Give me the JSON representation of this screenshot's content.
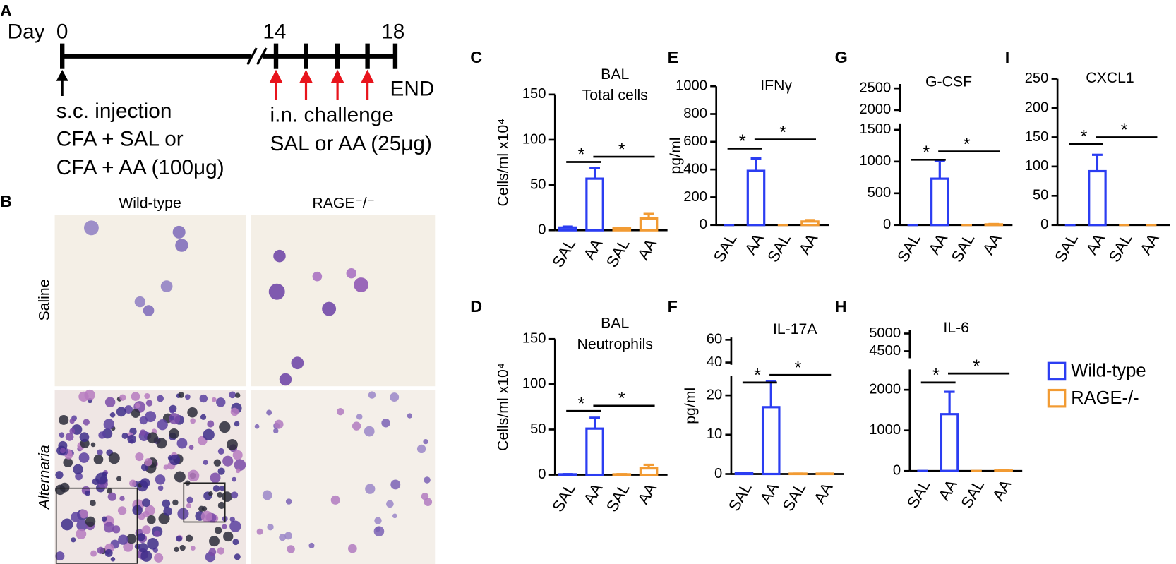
{
  "timeline": {
    "panel": "A",
    "day_label": "Day",
    "days": [
      "0",
      "14",
      "18"
    ],
    "end_label": "END",
    "injection": [
      "s.c. injection",
      "CFA + SAL or",
      "CFA + AA (100μg)"
    ],
    "challenge": [
      "i.n. challenge",
      "SAL or AA (25μg)"
    ]
  },
  "micrographs": {
    "panel": "B",
    "columns": [
      "Wild-type",
      "RAGE⁻/⁻"
    ],
    "rows": [
      "Saline",
      "Alternaria"
    ]
  },
  "legend": {
    "entries": [
      {
        "name": "Wild-type",
        "color": "#2b3df2"
      },
      {
        "name": "RAGE-/-",
        "color": "#f29b33"
      }
    ]
  },
  "chart_data": [
    {
      "type": "bar",
      "panel": "C",
      "title": [
        "BAL",
        "Total cells"
      ],
      "ylabel": "Cells/ml x10⁴",
      "categories": [
        "SAL",
        "AA",
        "SAL",
        "AA"
      ],
      "values": [
        3,
        57,
        2,
        13
      ],
      "errors": [
        1,
        12,
        0.5,
        5
      ],
      "bar_colors": [
        "#2b3df2",
        "#2b3df2",
        "#f29b33",
        "#f29b33"
      ],
      "ylim": [
        0,
        150
      ],
      "yticks": [
        0,
        50,
        100,
        150
      ],
      "annotations": [
        "*",
        "*"
      ]
    },
    {
      "type": "bar",
      "panel": "D",
      "title": [
        "BAL",
        "Neutrophils"
      ],
      "ylabel": "Cells/ml x10⁴",
      "categories": [
        "SAL",
        "AA",
        "SAL",
        "AA"
      ],
      "values": [
        0.5,
        51,
        0.5,
        7
      ],
      "errors": [
        0.2,
        12,
        0.2,
        4
      ],
      "bar_colors": [
        "#2b3df2",
        "#2b3df2",
        "#f29b33",
        "#f29b33"
      ],
      "ylim": [
        0,
        150
      ],
      "yticks": [
        0,
        50,
        100,
        150
      ],
      "annotations": [
        "*",
        "*"
      ]
    },
    {
      "type": "bar",
      "panel": "E",
      "title": [
        "IFNγ"
      ],
      "ylabel": "pg/ml",
      "categories": [
        "SAL",
        "AA",
        "SAL",
        "AA"
      ],
      "values": [
        0,
        390,
        0,
        25
      ],
      "errors": [
        0,
        90,
        0,
        10
      ],
      "bar_colors": [
        "#2b3df2",
        "#2b3df2",
        "#f29b33",
        "#f29b33"
      ],
      "ylim": [
        0,
        1000
      ],
      "yticks": [
        0,
        200,
        400,
        600,
        800,
        1000
      ],
      "annotations": [
        "*",
        "*"
      ]
    },
    {
      "type": "bar",
      "panel": "F",
      "title": [
        "IL-17A"
      ],
      "ylabel": "pg/ml",
      "categories": [
        "SAL",
        "AA",
        "SAL",
        "AA"
      ],
      "values": [
        0.2,
        17,
        0.1,
        0.1
      ],
      "errors": [
        0,
        6.5,
        0,
        0
      ],
      "bar_colors": [
        "#2b3df2",
        "#2b3df2",
        "#f29b33",
        "#f29b33"
      ],
      "ylim": [
        0,
        62
      ],
      "ybreak": [
        25,
        38
      ],
      "yticks": [
        0,
        10,
        20,
        40,
        60
      ],
      "annotations": [
        "*",
        "*"
      ]
    },
    {
      "type": "bar",
      "panel": "G",
      "title": [
        "G-CSF"
      ],
      "categories": [
        "SAL",
        "AA",
        "SAL",
        "AA"
      ],
      "values": [
        0,
        730,
        0,
        10
      ],
      "errors": [
        0,
        280,
        0,
        5
      ],
      "bar_colors": [
        "#2b3df2",
        "#2b3df2",
        "#f29b33",
        "#f29b33"
      ],
      "ylim": [
        0,
        2600
      ],
      "ybreak": [
        1600,
        1950
      ],
      "yticks": [
        0,
        500,
        1000,
        1500,
        2000,
        2500
      ],
      "annotations": [
        "*",
        "*"
      ]
    },
    {
      "type": "bar",
      "panel": "H",
      "title": [
        "IL-6"
      ],
      "categories": [
        "SAL",
        "AA",
        "SAL",
        "AA"
      ],
      "values": [
        0,
        1400,
        0,
        10
      ],
      "errors": [
        0,
        550,
        0,
        5
      ],
      "bar_colors": [
        "#2b3df2",
        "#2b3df2",
        "#f29b33",
        "#f29b33"
      ],
      "ylim": [
        0,
        5100
      ],
      "ybreak": [
        2500,
        4300
      ],
      "yticks": [
        0,
        1000,
        2000,
        4500,
        5000
      ],
      "annotations": [
        "*",
        "*"
      ]
    },
    {
      "type": "bar",
      "panel": "I",
      "title": [
        "CXCL1"
      ],
      "categories": [
        "SAL",
        "AA",
        "SAL",
        "AA"
      ],
      "values": [
        0,
        92,
        0,
        0
      ],
      "errors": [
        0,
        28,
        0,
        0
      ],
      "bar_colors": [
        "#2b3df2",
        "#2b3df2",
        "#f29b33",
        "#f29b33"
      ],
      "ylim": [
        0,
        250
      ],
      "yticks": [
        0,
        50,
        100,
        150,
        200,
        250
      ],
      "annotations": [
        "*",
        "*"
      ]
    }
  ]
}
